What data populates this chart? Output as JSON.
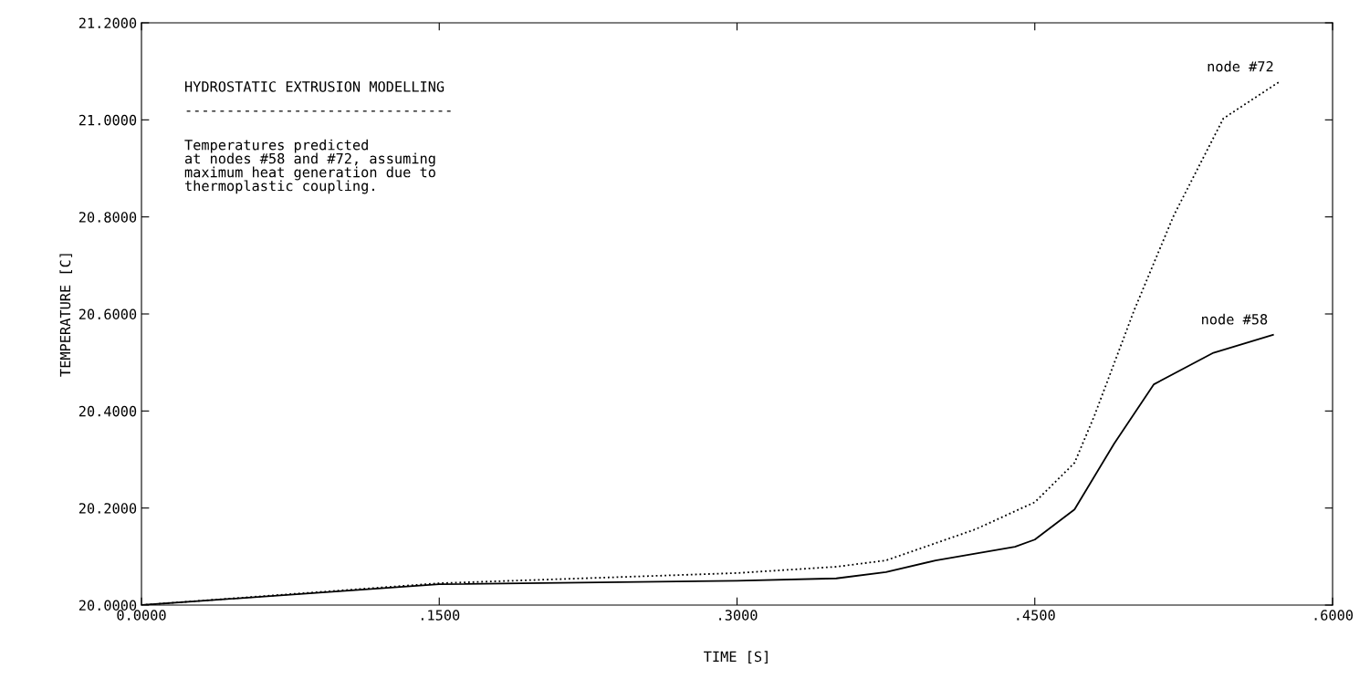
{
  "chart_data": {
    "type": "line",
    "xlabel": "TIME [S]",
    "ylabel": "TEMPERATURE [C]",
    "xlim": [
      0,
      0.6
    ],
    "ylim": [
      20.0,
      21.2
    ],
    "xticks": [
      {
        "value": 0,
        "label": "0.0000"
      },
      {
        "value": 0.15,
        "label": ".1500"
      },
      {
        "value": 0.3,
        "label": ".3000"
      },
      {
        "value": 0.45,
        "label": ".4500"
      },
      {
        "value": 0.6,
        "label": ".6000"
      }
    ],
    "yticks": [
      {
        "value": 20.0,
        "label": "20.0000"
      },
      {
        "value": 20.2,
        "label": "20.2000"
      },
      {
        "value": 20.4,
        "label": "20.4000"
      },
      {
        "value": 20.6,
        "label": "20.6000"
      },
      {
        "value": 20.8,
        "label": "20.8000"
      },
      {
        "value": 21.0,
        "label": "21.0000"
      },
      {
        "value": 21.2,
        "label": "21.2000"
      }
    ],
    "grid": false,
    "legend": false,
    "series": [
      {
        "name": "node #58",
        "color": "#000000",
        "line_style": "solid",
        "x": [
          0.0,
          0.15,
          0.3,
          0.35,
          0.375,
          0.4,
          0.44,
          0.45,
          0.47,
          0.49,
          0.51,
          0.54,
          0.57
        ],
        "values": [
          20.0,
          20.043,
          20.05,
          20.055,
          20.068,
          20.092,
          20.12,
          20.135,
          20.197,
          20.333,
          20.455,
          20.52,
          20.557
        ]
      },
      {
        "name": "node #72",
        "color": "#000000",
        "line_style": "dotted",
        "x": [
          0.0,
          0.15,
          0.3,
          0.35,
          0.375,
          0.42,
          0.45,
          0.47,
          0.48,
          0.5,
          0.52,
          0.545,
          0.573
        ],
        "values": [
          20.0,
          20.045,
          20.066,
          20.079,
          20.092,
          20.156,
          20.212,
          20.293,
          20.39,
          20.607,
          20.803,
          21.003,
          21.078
        ]
      }
    ],
    "annotations": [
      "HYDROSTATIC EXTRUSION MODELLING",
      "--------------------------------",
      "Temperatures predicted\nat nodes #58 and #72, assuming\nmaximum heat generation due to\nthermoplastic coupling."
    ]
  }
}
